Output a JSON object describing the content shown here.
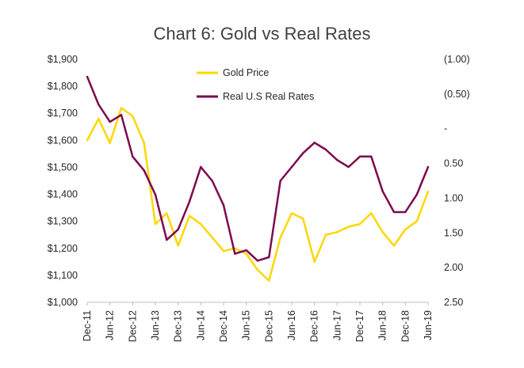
{
  "chart_data": {
    "type": "line",
    "title": "Chart 6: Gold vs Real Rates",
    "x": [
      "Dec-11",
      "Mar-12",
      "Jun-12",
      "Sep-12",
      "Dec-12",
      "Mar-13",
      "Jun-13",
      "Sep-13",
      "Dec-13",
      "Mar-14",
      "Jun-14",
      "Sep-14",
      "Dec-14",
      "Mar-15",
      "Jun-15",
      "Sep-15",
      "Dec-15",
      "Mar-16",
      "Jun-16",
      "Sep-16",
      "Dec-16",
      "Mar-17",
      "Jun-17",
      "Sep-17",
      "Dec-17",
      "Mar-18",
      "Jun-18",
      "Sep-18",
      "Dec-18",
      "Mar-19",
      "Jun-19"
    ],
    "x_tick_labels": [
      "Dec-11",
      "Jun-12",
      "Dec-12",
      "Jun-13",
      "Dec-13",
      "Jun-14",
      "Dec-14",
      "Jun-15",
      "Dec-15",
      "Jun-16",
      "Dec-16",
      "Jun-17",
      "Dec-17",
      "Jun-18",
      "Dec-18",
      "Jun-19"
    ],
    "y_left": {
      "ylim": [
        1000,
        1900
      ],
      "ticks": [
        "$1,000",
        "$1,100",
        "$1,200",
        "$1,300",
        "$1,400",
        "$1,500",
        "$1,600",
        "$1,700",
        "$1,800",
        "$1,900"
      ]
    },
    "y_right": {
      "inverted": true,
      "ylim": [
        -1.0,
        2.5
      ],
      "ticks": [
        "(1.00)",
        "(0.50)",
        "-",
        "0.50",
        "1.00",
        "1.50",
        "2.00",
        "2.50"
      ]
    },
    "legend_position": "top-center",
    "series": [
      {
        "name": "Gold Price",
        "axis": "left",
        "color": "#FFD700",
        "values": [
          1600,
          1680,
          1590,
          1720,
          1690,
          1590,
          1290,
          1330,
          1210,
          1320,
          1290,
          1240,
          1190,
          1200,
          1180,
          1120,
          1080,
          1240,
          1330,
          1310,
          1150,
          1250,
          1260,
          1280,
          1290,
          1330,
          1260,
          1210,
          1270,
          1300,
          1410
        ]
      },
      {
        "name": "Real U.S Real Rates",
        "axis": "right",
        "color": "#7B0A4E",
        "values": [
          -0.75,
          -0.35,
          -0.1,
          -0.2,
          0.4,
          0.6,
          0.95,
          1.6,
          1.45,
          1.05,
          0.55,
          0.75,
          1.1,
          1.8,
          1.75,
          1.9,
          1.85,
          0.75,
          0.55,
          0.35,
          0.2,
          0.3,
          0.45,
          0.55,
          0.4,
          0.4,
          0.9,
          1.2,
          1.2,
          0.95,
          0.55
        ]
      }
    ]
  }
}
